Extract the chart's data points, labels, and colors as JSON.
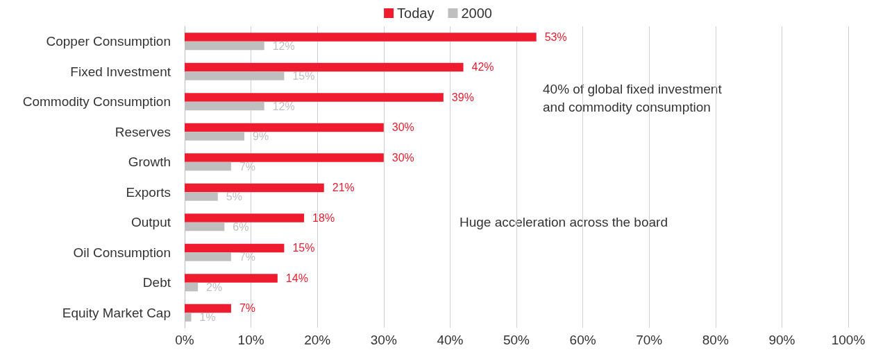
{
  "chart_data": {
    "type": "bar",
    "orientation": "horizontal",
    "categories": [
      "Copper Consumption",
      "Fixed Investment",
      "Commodity Consumption",
      "Reserves",
      "Growth",
      "Exports",
      "Output",
      "Oil Consumption",
      "Debt",
      "Equity Market Cap"
    ],
    "series": [
      {
        "name": "Today",
        "color": "#ee1c2e",
        "values": [
          53,
          42,
          39,
          30,
          30,
          21,
          18,
          15,
          14,
          7
        ],
        "value_labels": [
          "53%",
          "42%",
          "39%",
          "30%",
          "30%",
          "21%",
          "18%",
          "15%",
          "14%",
          "7%"
        ]
      },
      {
        "name": "2000",
        "color": "#bfbfbf",
        "values": [
          12,
          15,
          12,
          9,
          7,
          5,
          6,
          7,
          2,
          1
        ],
        "value_labels": [
          "12%",
          "15%",
          "12%",
          "9%",
          "7%",
          "5%",
          "6%",
          "7%",
          "2%",
          "1%"
        ]
      }
    ],
    "xlim": [
      0,
      100
    ],
    "xticks": [
      {
        "value": 0,
        "label": "0%"
      },
      {
        "value": 10,
        "label": "10%"
      },
      {
        "value": 20,
        "label": "20%"
      },
      {
        "value": 30,
        "label": "30%"
      },
      {
        "value": 40,
        "label": "40%"
      },
      {
        "value": 50,
        "label": "50%"
      },
      {
        "value": 60,
        "label": "60%"
      },
      {
        "value": 70,
        "label": "70%"
      },
      {
        "value": 80,
        "label": "80%"
      },
      {
        "value": 90,
        "label": "90%"
      },
      {
        "value": 100,
        "label": "100%"
      }
    ],
    "grid": "x",
    "legend": "top",
    "annotations": [
      "40% of global fixed investment\nand commodity consumption",
      "Huge acceleration across the board"
    ]
  }
}
